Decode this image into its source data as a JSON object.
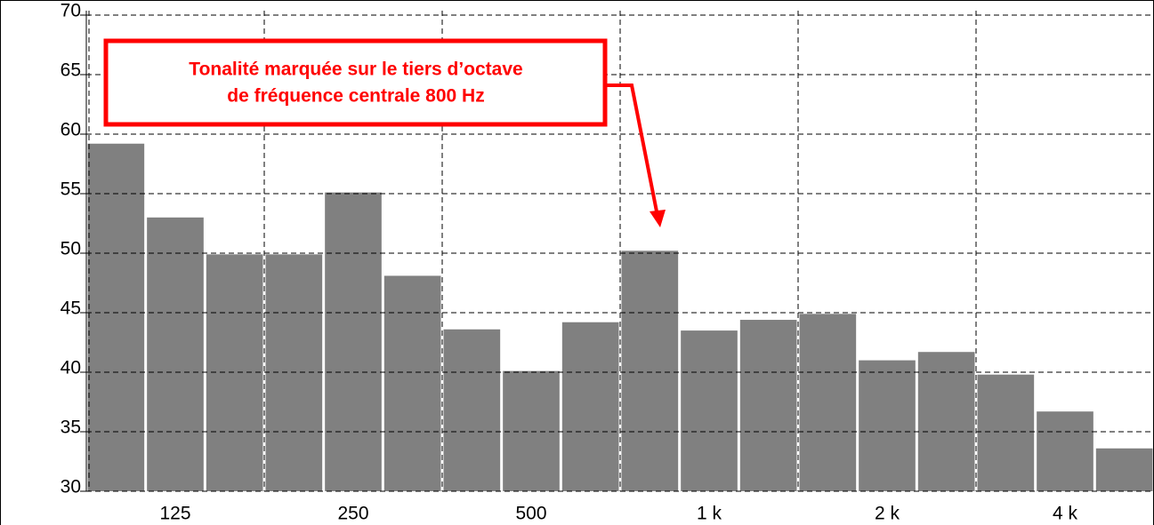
{
  "chart_data": {
    "type": "bar",
    "categories": [
      null,
      "125",
      null,
      null,
      "250",
      null,
      null,
      "500",
      null,
      null,
      "1 k",
      null,
      null,
      "2 k",
      null,
      null,
      "4 k",
      null
    ],
    "values": [
      59.2,
      53.0,
      49.9,
      49.9,
      55.1,
      48.1,
      43.6,
      40.1,
      44.2,
      50.2,
      43.5,
      44.4,
      44.9,
      41.0,
      41.7,
      39.8,
      36.7,
      33.6
    ],
    "color": "#808080",
    "ylim": [
      30,
      70
    ],
    "yticks": [
      30,
      35,
      40,
      45,
      50,
      55,
      60,
      65,
      70
    ],
    "grid": true,
    "annotation": [
      "Tonalité marquée sur le tiers d’octave",
      "de fréquence centrale 800 Hz"
    ],
    "annotation_color": "#ff0000"
  }
}
